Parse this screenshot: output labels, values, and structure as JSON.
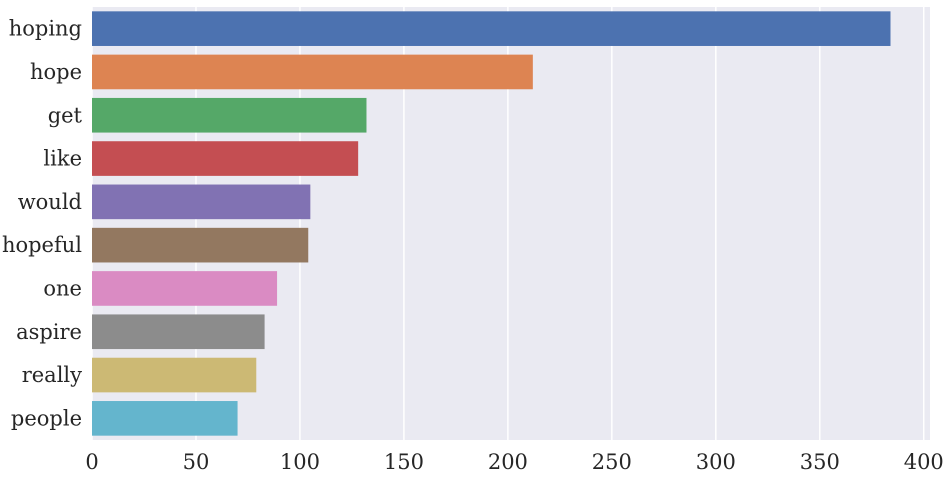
{
  "chart_data": {
    "type": "bar",
    "orientation": "horizontal",
    "categories": [
      "hoping",
      "hope",
      "get",
      "like",
      "would",
      "hopeful",
      "one",
      "aspire",
      "really",
      "people"
    ],
    "values": [
      384,
      212,
      132,
      128,
      105,
      104,
      89,
      83,
      79,
      70
    ],
    "colors": [
      "#4c72b0",
      "#dd8452",
      "#55a868",
      "#c44e52",
      "#8172b3",
      "#937860",
      "#da8bc3",
      "#8c8c8c",
      "#ccb974",
      "#64b5cd"
    ],
    "title": "",
    "xlabel": "",
    "ylabel": "",
    "xlim": [
      0,
      403
    ],
    "xticks": [
      0,
      50,
      100,
      150,
      200,
      250,
      300,
      350,
      400
    ],
    "grid": true,
    "background": "#eaeaf2",
    "grid_color": "#ffffff",
    "legend": "none"
  }
}
